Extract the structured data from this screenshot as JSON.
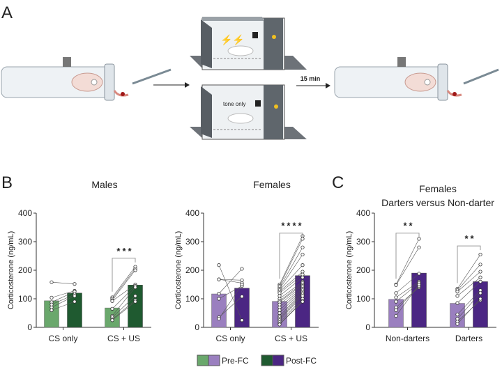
{
  "panels": {
    "a": "A",
    "b": "B",
    "c": "C"
  },
  "illustration": {
    "delay_label": "15 min",
    "tone_label": "tone only"
  },
  "legend": {
    "pre": "Pre-FC",
    "post": "Post-FC"
  },
  "colors": {
    "green_pre": "#6aa86c",
    "green_post": "#1f5a30",
    "purple_pre": "#9a7fbf",
    "purple_post": "#4b2683"
  },
  "chart_data": [
    {
      "type": "bar",
      "title": "Males",
      "ylabel": "Corticosterone (ng/mL)",
      "ylim": [
        0,
        400
      ],
      "yticks": [
        "0",
        "100",
        "200",
        "300",
        "400"
      ],
      "categories": [
        "CS only",
        "CS + US"
      ],
      "palette": "green",
      "series": [
        {
          "name": "Pre-FC",
          "values": [
            93,
            68
          ]
        },
        {
          "name": "Post-FC",
          "values": [
            120,
            148
          ]
        }
      ],
      "pairs": [
        {
          "pre": [
            158,
            104,
            88,
            80,
            70,
            60
          ],
          "post": [
            152,
            128,
            125,
            115,
            110,
            90
          ]
        },
        {
          "pre": [
            105,
            100,
            95,
            92,
            65,
            40,
            35,
            28,
            25
          ],
          "post": [
            212,
            205,
            200,
            150,
            145,
            140,
            110,
            95,
            90
          ]
        }
      ],
      "significance": [
        "",
        "***"
      ]
    },
    {
      "type": "bar",
      "title": "Females",
      "ylabel": "Corticosterone (ng/mL)",
      "ylim": [
        0,
        400
      ],
      "yticks": [
        "0",
        "100",
        "200",
        "300",
        "400"
      ],
      "categories": [
        "CS only",
        "CS + US"
      ],
      "palette": "purple",
      "series": [
        {
          "name": "Pre-FC",
          "values": [
            117,
            91
          ]
        },
        {
          "name": "Post-FC",
          "values": [
            137,
            181
          ]
        }
      ],
      "pairs": [
        {
          "pre": [
            218,
            168,
            168,
            118,
            100,
            35,
            30
          ],
          "post": [
            25,
            165,
            155,
            205,
            145,
            108,
            150
          ]
        },
        {
          "pre": [
            150,
            145,
            140,
            135,
            130,
            125,
            120,
            110,
            100,
            92,
            88,
            80,
            70,
            60,
            50,
            40,
            35,
            30,
            25,
            18,
            12,
            10
          ],
          "post": [
            320,
            310,
            280,
            255,
            218,
            195,
            185,
            175,
            160,
            155,
            150,
            145,
            140,
            135,
            130,
            125,
            120,
            115,
            110,
            100,
            92,
            90
          ]
        }
      ],
      "significance": [
        "",
        "****"
      ]
    },
    {
      "type": "bar",
      "title": "Females",
      "subtitle": "Darters versus Non-darter",
      "ylabel": "Corticosterone (ng/mL)",
      "ylim": [
        0,
        400
      ],
      "yticks": [
        "0",
        "100",
        "200",
        "300",
        "400"
      ],
      "categories": [
        "Non-darters",
        "Darters"
      ],
      "palette": "purple",
      "series": [
        {
          "name": "Pre-FC",
          "values": [
            98,
            84
          ]
        },
        {
          "name": "Post-FC",
          "values": [
            190,
            160
          ]
        }
      ],
      "pairs": [
        {
          "pre": [
            150,
            148,
            120,
            105,
            90,
            70,
            60,
            40
          ],
          "post": [
            310,
            280,
            188,
            160,
            155,
            140,
            145,
            150
          ]
        },
        {
          "pre": [
            135,
            130,
            125,
            110,
            85,
            45,
            30,
            20,
            12
          ],
          "post": [
            255,
            220,
            195,
            175,
            160,
            130,
            120,
            95,
            100
          ]
        }
      ],
      "significance": [
        "**",
        "**"
      ]
    }
  ]
}
